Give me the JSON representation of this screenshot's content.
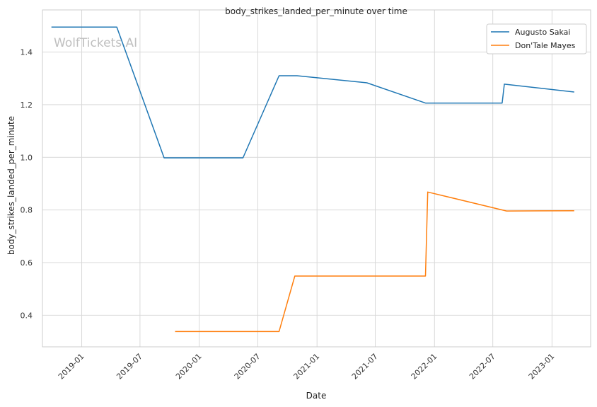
{
  "chart_data": {
    "type": "line",
    "title": "body_strikes_landed_per_minute over time",
    "xlabel": "Date",
    "ylabel": "body_strikes_landed_per_minute",
    "watermark": "WolfTickets.AI",
    "grid": true,
    "legend_position": "top-right",
    "x_ticks": [
      "2019-01",
      "2019-07",
      "2020-01",
      "2020-07",
      "2021-01",
      "2021-07",
      "2022-01",
      "2022-07",
      "2023-01"
    ],
    "y_ticks": [
      "0.4",
      "0.6",
      "0.8",
      "1.0",
      "1.2",
      "1.4"
    ],
    "xlim": [
      "2018-09-01",
      "2023-05-01"
    ],
    "ylim": [
      0.28,
      1.56
    ],
    "series": [
      {
        "name": "Augusto Sakai",
        "color": "#1f77b4",
        "x": [
          "2018-09-29",
          "2019-04-20",
          "2019-09-14",
          "2020-05-16",
          "2020-09-05",
          "2020-10-31",
          "2021-06-05",
          "2021-12-04",
          "2022-07-30",
          "2022-08-06",
          "2023-03-11"
        ],
        "y": [
          1.495,
          1.495,
          0.998,
          0.998,
          1.31,
          1.31,
          1.283,
          1.206,
          1.206,
          1.278,
          1.248
        ]
      },
      {
        "name": "Don'Tale Mayes",
        "color": "#ff7f0e",
        "x": [
          "2019-10-18",
          "2020-09-05",
          "2020-10-24",
          "2021-12-04",
          "2021-12-11",
          "2022-08-13",
          "2023-03-11"
        ],
        "y": [
          0.338,
          0.338,
          0.549,
          0.549,
          0.868,
          0.796,
          0.797
        ]
      }
    ]
  }
}
